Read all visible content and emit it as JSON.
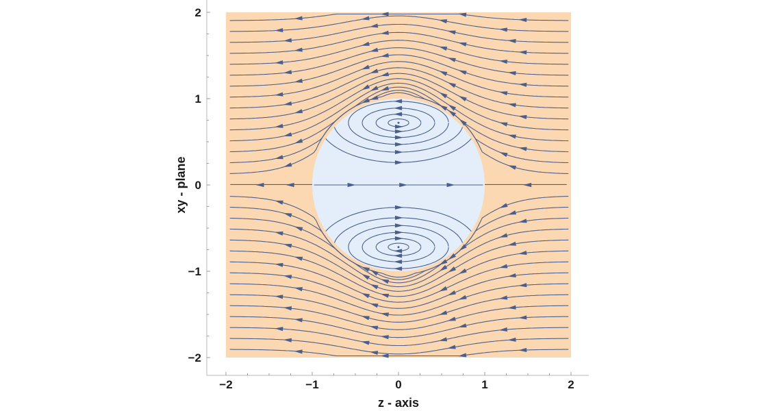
{
  "chart_data": {
    "type": "streamplot",
    "xlabel": "z - axis",
    "ylabel": "xy - plane",
    "xlim": [
      -2,
      2
    ],
    "ylim": [
      -2,
      2
    ],
    "x_ticks": [
      "−2",
      "−1",
      "0",
      "1",
      "2"
    ],
    "y_ticks": [
      "−2",
      "−1",
      "0",
      "1",
      "2"
    ],
    "x_tick_values": [
      -2,
      -1,
      0,
      1,
      2
    ],
    "y_tick_values": [
      -2,
      -1,
      0,
      1,
      2
    ],
    "regions": [
      {
        "name": "outer flow",
        "color": "#fcd8b2"
      },
      {
        "name": "sphere interior",
        "color": "#e4eefb",
        "radius": 1
      }
    ],
    "stream_color": "#4c5f8a",
    "outer_flow_direction": "toward negative z",
    "grid": false
  }
}
